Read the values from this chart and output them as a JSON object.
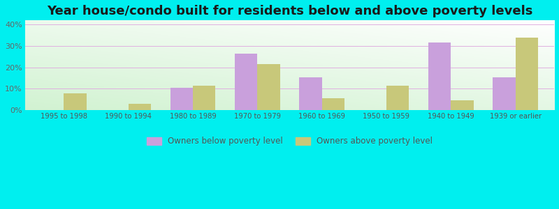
{
  "title": "Year house/condo built for residents below and above poverty levels",
  "categories": [
    "1995 to 1998",
    "1990 to 1994",
    "1980 to 1989",
    "1970 to 1979",
    "1960 to 1969",
    "1950 to 1959",
    "1940 to 1949",
    "1939 or earlier"
  ],
  "below_poverty": [
    0,
    0,
    10.5,
    26.5,
    15.5,
    0,
    31.5,
    15.5
  ],
  "above_poverty": [
    8.0,
    3.0,
    11.5,
    21.5,
    5.5,
    11.5,
    4.5,
    34.0
  ],
  "below_color": "#c9a0dc",
  "above_color": "#c8c87a",
  "background_top": "#ffffff",
  "background_bottom": "#b8e8b8",
  "outer_background": "#00efef",
  "grid_color": "#e0b0e0",
  "ylim": [
    0,
    42
  ],
  "yticks": [
    0,
    10,
    20,
    30,
    40
  ],
  "ytick_labels": [
    "0%",
    "10%",
    "20%",
    "30%",
    "40%"
  ],
  "legend_below": "Owners below poverty level",
  "legend_above": "Owners above poverty level",
  "title_fontsize": 13,
  "bar_width": 0.35
}
